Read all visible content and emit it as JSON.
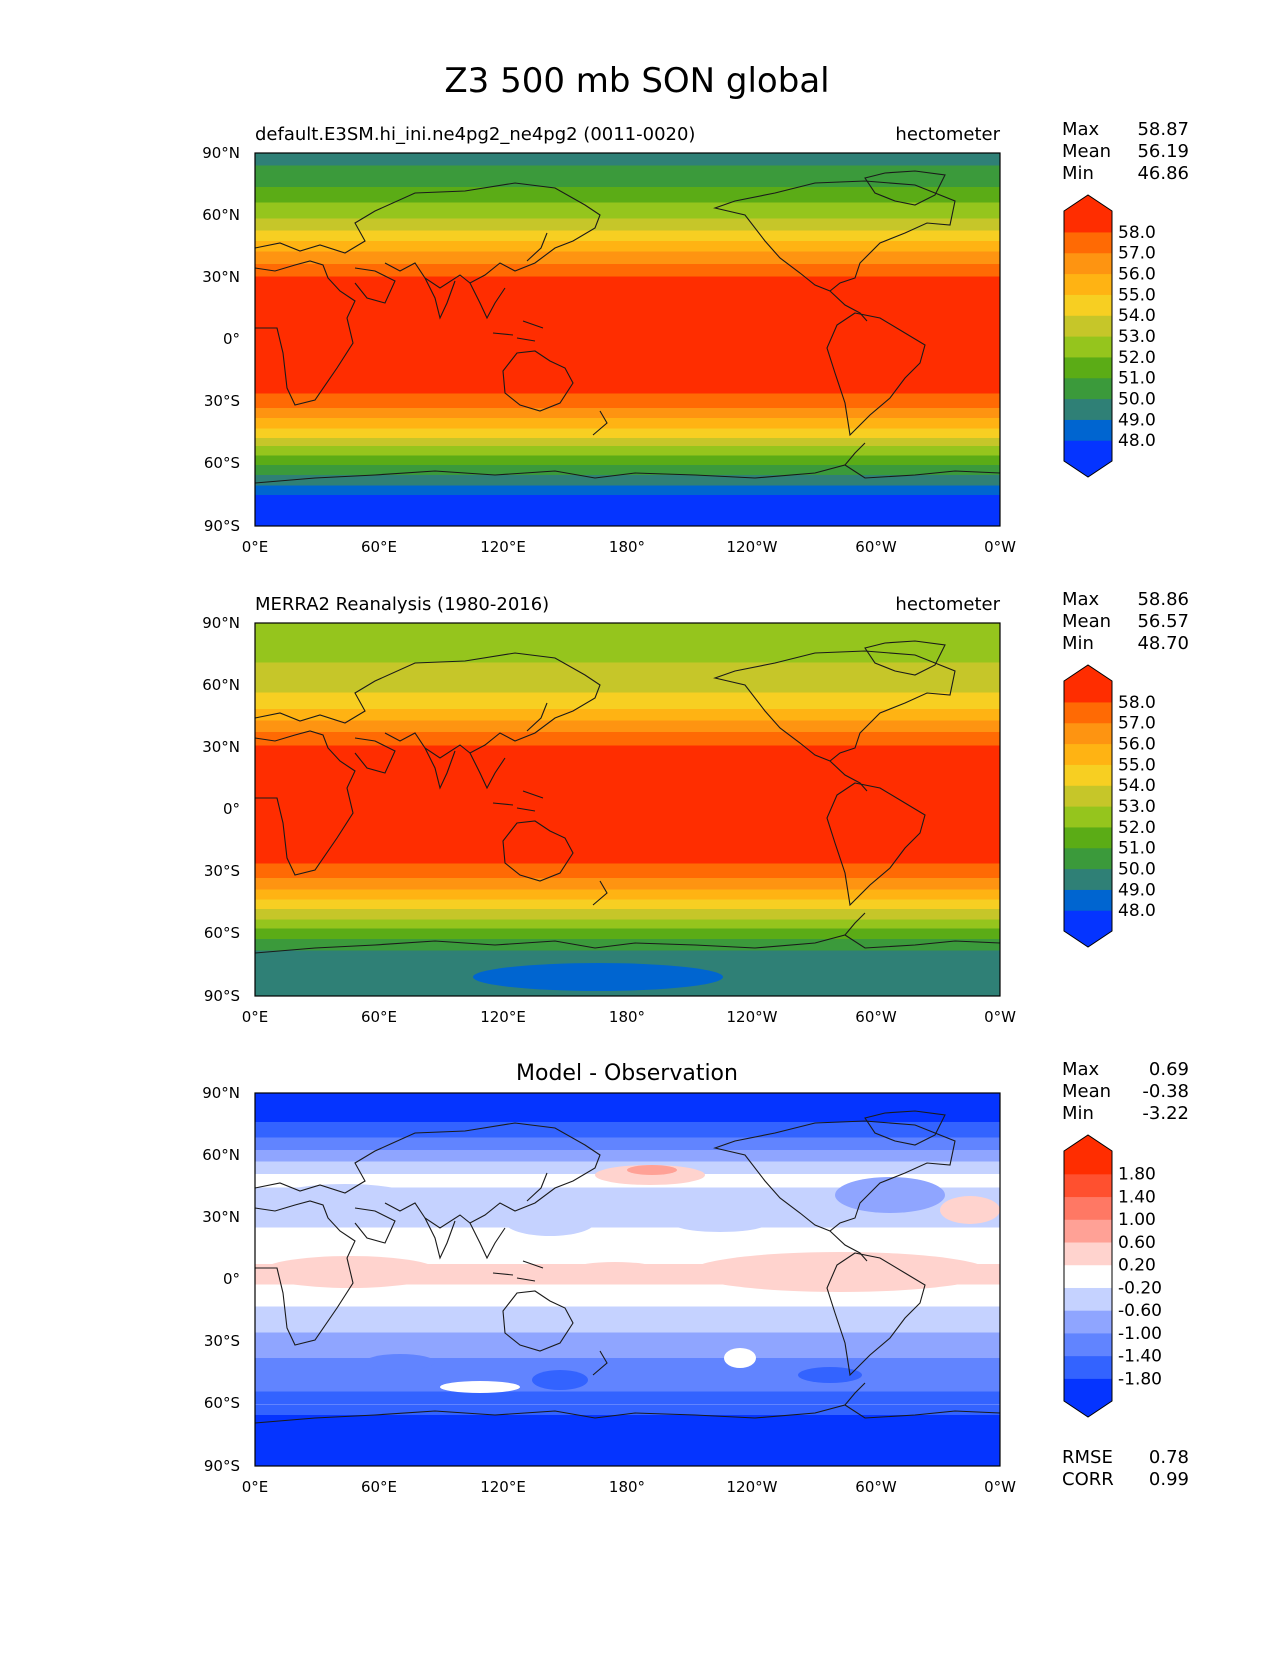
{
  "title": "Z3 500 mb SON global",
  "colors": {
    "test_levels": [
      "#0534ff",
      "#0065d0",
      "#2f8076",
      "#3b9a3b",
      "#5bac16",
      "#95c51d",
      "#c6c629",
      "#f7cf22",
      "#ffb313",
      "#fe9411",
      "#ff6a04",
      "#ff2d00"
    ],
    "diff_levels": [
      "#0534ff",
      "#3363ff",
      "#6184ff",
      "#8fa5ff",
      "#c5d2ff",
      "#ffffff",
      "#ffd3ce",
      "#ffa196",
      "#ff7864",
      "#ff502f",
      "#ff2d00"
    ]
  },
  "panels": [
    {
      "id": "test",
      "title_left": "default.E3SM.hi_ini.ne4pg2_ne4pg2 (0011-0020)",
      "title_center": "",
      "title_right": "hectometer",
      "stats": [
        {
          "label": "Max",
          "value": "58.87"
        },
        {
          "label": "Mean",
          "value": "56.19"
        },
        {
          "label": "Min",
          "value": "46.86"
        }
      ],
      "colorbar_ticks": [
        "58.0",
        "57.0",
        "56.0",
        "55.0",
        "54.0",
        "53.0",
        "52.0",
        "51.0",
        "50.0",
        "49.0",
        "48.0"
      ],
      "extra_stats": []
    },
    {
      "id": "ref",
      "title_left": "MERRA2 Reanalysis (1980-2016)",
      "title_center": "",
      "title_right": "hectometer",
      "stats": [
        {
          "label": "Max",
          "value": "58.86"
        },
        {
          "label": "Mean",
          "value": "56.57"
        },
        {
          "label": "Min",
          "value": "48.70"
        }
      ],
      "colorbar_ticks": [
        "58.0",
        "57.0",
        "56.0",
        "55.0",
        "54.0",
        "53.0",
        "52.0",
        "51.0",
        "50.0",
        "49.0",
        "48.0"
      ],
      "extra_stats": []
    },
    {
      "id": "diff",
      "title_left": "",
      "title_center": "Model - Observation",
      "title_right": "",
      "stats": [
        {
          "label": "Max",
          "value": "0.69"
        },
        {
          "label": "Mean",
          "value": "-0.38"
        },
        {
          "label": "Min",
          "value": "-3.22"
        }
      ],
      "colorbar_ticks": [
        "1.80",
        "1.40",
        "1.00",
        "0.60",
        "0.20",
        "-0.20",
        "-0.60",
        "-1.00",
        "-1.40",
        "-1.80"
      ],
      "extra_stats": [
        {
          "label": "RMSE",
          "value": "0.78"
        },
        {
          "label": "CORR",
          "value": "0.99"
        }
      ]
    }
  ],
  "axes": {
    "x_ticks": [
      "0°E",
      "60°E",
      "120°E",
      "180°",
      "120°W",
      "60°W",
      "0°W"
    ],
    "y_ticks": [
      "90°N",
      "60°N",
      "30°N",
      "0°",
      "30°S",
      "60°S",
      "90°S"
    ]
  },
  "chart_data": [
    {
      "type": "heatmap",
      "title": "default.E3SM.hi_ini.ne4pg2_ne4pg2 (0011-0020)",
      "units": "hectometer",
      "x_range": [
        0,
        360
      ],
      "y_range": [
        -90,
        90
      ],
      "levels": [
        48,
        49,
        50,
        51,
        52,
        53,
        54,
        55,
        56,
        57,
        58
      ],
      "zonal_profile": {
        "lat": [
          90,
          75,
          60,
          50,
          45,
          40,
          35,
          30,
          20,
          0,
          -20,
          -25,
          -30,
          -35,
          -40,
          -45,
          -50,
          -55,
          -60,
          -65,
          -70,
          -75,
          -90
        ],
        "value": [
          49.5,
          50.8,
          52.8,
          54.5,
          55.5,
          56.5,
          57.3,
          58.1,
          58.5,
          58.6,
          58.4,
          58.1,
          57.4,
          56.6,
          55.5,
          54.5,
          53.3,
          52.2,
          51.0,
          50.0,
          49.0,
          47.9,
          47.5
        ]
      },
      "stats": {
        "max": 58.87,
        "mean": 56.19,
        "min": 46.86
      }
    },
    {
      "type": "heatmap",
      "title": "MERRA2 Reanalysis (1980-2016)",
      "units": "hectometer",
      "x_range": [
        0,
        360
      ],
      "y_range": [
        -90,
        90
      ],
      "levels": [
        48,
        49,
        50,
        51,
        52,
        53,
        54,
        55,
        56,
        57,
        58
      ],
      "zonal_profile": {
        "lat": [
          90,
          75,
          60,
          50,
          45,
          40,
          35,
          30,
          20,
          0,
          -20,
          -25,
          -30,
          -35,
          -40,
          -45,
          -50,
          -55,
          -60,
          -65,
          -70,
          -75,
          -90
        ],
        "value": [
          52.2,
          52.8,
          53.6,
          54.8,
          55.7,
          56.6,
          57.4,
          58.2,
          58.5,
          58.6,
          58.4,
          58.1,
          57.4,
          56.6,
          55.6,
          54.6,
          53.5,
          52.5,
          51.4,
          50.5,
          49.6,
          49.3,
          49.2
        ]
      },
      "stats": {
        "max": 58.86,
        "mean": 56.57,
        "min": 48.7
      }
    },
    {
      "type": "heatmap",
      "title": "Model - Observation",
      "units": "hectometer",
      "x_range": [
        0,
        360
      ],
      "y_range": [
        -90,
        90
      ],
      "levels": [
        -1.8,
        -1.4,
        -1.0,
        -0.6,
        -0.2,
        0.2,
        0.6,
        1.0,
        1.4,
        1.8
      ],
      "zonal_profile": {
        "lat": [
          90,
          80,
          70,
          60,
          50,
          40,
          30,
          20,
          10,
          5,
          0,
          -10,
          -20,
          -30,
          -40,
          -45,
          -50,
          -55,
          -60,
          -65,
          -70,
          -80,
          -90
        ],
        "value": [
          -2.3,
          -2.0,
          -1.5,
          -0.8,
          -0.1,
          -0.3,
          -0.4,
          0.0,
          0.1,
          0.3,
          0.3,
          -0.1,
          -0.5,
          -0.7,
          -1.1,
          -1.3,
          -1.1,
          -1.5,
          -1.4,
          -1.8,
          -2.0,
          -2.2,
          -2.3
        ]
      },
      "stats": {
        "max": 0.69,
        "mean": -0.38,
        "min": -3.22,
        "rmse": 0.78,
        "corr": 0.99
      }
    }
  ]
}
